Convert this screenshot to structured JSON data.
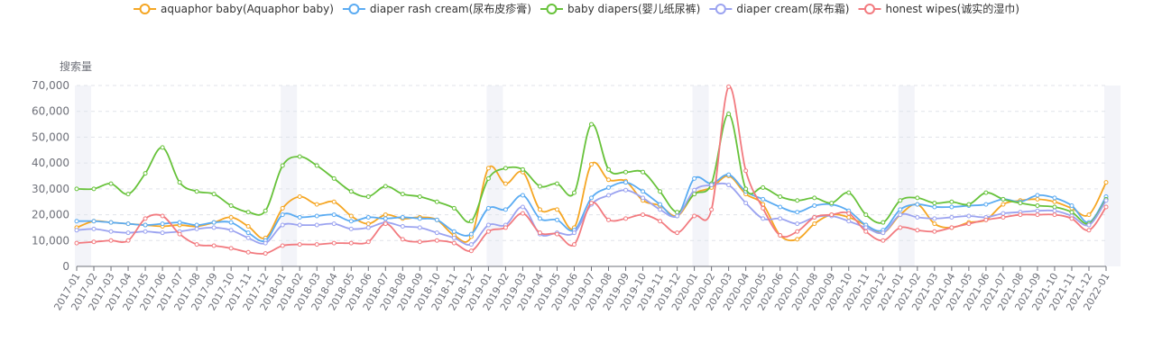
{
  "chart_data": {
    "type": "line",
    "ylabel": "搜索量",
    "ylim": [
      0,
      70000
    ],
    "yticks": [
      0,
      10000,
      20000,
      30000,
      40000,
      50000,
      60000,
      70000
    ],
    "ytick_labels": [
      "0",
      "10,000",
      "20,000",
      "30,000",
      "40,000",
      "50,000",
      "60,000",
      "70,000"
    ],
    "legend_position": "top-center",
    "grid": "horizontal-dashed",
    "categories": [
      "2017-01",
      "2017-02",
      "2017-03",
      "2017-04",
      "2017-05",
      "2017-06",
      "2017-07",
      "2017-08",
      "2017-09",
      "2017-10",
      "2017-11",
      "2017-12",
      "2018-01",
      "2018-02",
      "2018-03",
      "2018-04",
      "2018-05",
      "2018-06",
      "2018-07",
      "2018-08",
      "2018-09",
      "2018-10",
      "2018-11",
      "2018-12",
      "2019-01",
      "2019-02",
      "2019-03",
      "2019-04",
      "2019-05",
      "2019-06",
      "2019-07",
      "2019-08",
      "2019-09",
      "2019-10",
      "2019-11",
      "2019-12",
      "2020-01",
      "2020-02",
      "2020-03",
      "2020-04",
      "2020-05",
      "2020-06",
      "2020-07",
      "2020-08",
      "2020-09",
      "2020-10",
      "2020-11",
      "2020-12",
      "2021-01",
      "2021-02",
      "2021-03",
      "2021-04",
      "2021-05",
      "2021-06",
      "2021-07",
      "2021-08",
      "2021-09",
      "2021-10",
      "2021-11",
      "2021-12",
      "2022-01"
    ],
    "series": [
      {
        "name": "aquaphor baby(Aquaphor baby)",
        "color": "#f5a623",
        "values": [
          15000,
          17500,
          17000,
          16500,
          16000,
          15500,
          16000,
          15500,
          17000,
          19000,
          15500,
          11000,
          22500,
          27000,
          24000,
          25000,
          19500,
          16500,
          20000,
          18500,
          19000,
          18000,
          12000,
          11500,
          38000,
          32000,
          36500,
          22000,
          22000,
          15000,
          39500,
          33500,
          33000,
          25500,
          23500,
          19500,
          28000,
          30500,
          35000,
          28000,
          24000,
          12000,
          10500,
          16500,
          20000,
          19000,
          16000,
          13000,
          20000,
          24000,
          16500,
          15000,
          17000,
          18000,
          24000,
          25500,
          26000,
          25000,
          22500,
          20000,
          32500
        ]
      },
      {
        "name": "diaper rash cream(尿布皮疹膏)",
        "color": "#5aabf2",
        "values": [
          17500,
          17500,
          17000,
          16500,
          16000,
          16500,
          17000,
          16000,
          17000,
          17000,
          13000,
          10000,
          20000,
          19000,
          19500,
          20000,
          17500,
          19000,
          18500,
          19000,
          18500,
          18000,
          13500,
          12500,
          22500,
          22000,
          27500,
          18500,
          18000,
          14000,
          26500,
          30500,
          32500,
          29000,
          24000,
          19500,
          34000,
          32000,
          35500,
          29000,
          26000,
          23000,
          21000,
          23500,
          24000,
          21500,
          16000,
          14000,
          22000,
          24000,
          23000,
          23000,
          23500,
          24000,
          26000,
          25000,
          27500,
          26500,
          23500,
          17000,
          27000
        ]
      },
      {
        "name": "baby diapers(婴儿纸尿裤)",
        "color": "#67c23a",
        "values": [
          30000,
          30000,
          32000,
          28000,
          36000,
          46000,
          32500,
          29000,
          28000,
          23500,
          21000,
          21500,
          39000,
          42500,
          39000,
          34000,
          29000,
          27000,
          31000,
          28000,
          27000,
          25000,
          22500,
          17500,
          34000,
          38000,
          37500,
          31000,
          32000,
          28500,
          55000,
          37500,
          36500,
          36500,
          29000,
          21000,
          28000,
          32000,
          59000,
          30000,
          30500,
          27000,
          25500,
          26500,
          24500,
          28500,
          20000,
          17000,
          25500,
          26500,
          24500,
          25000,
          24000,
          28500,
          26000,
          24500,
          23500,
          23000,
          21000,
          16500,
          26000
        ]
      },
      {
        "name": "diaper cream(尿布霜)",
        "color": "#9ba3f0",
        "values": [
          14000,
          14500,
          13500,
          13000,
          13500,
          13000,
          13500,
          14500,
          15000,
          14000,
          11000,
          9000,
          16000,
          16000,
          16000,
          16500,
          14500,
          15000,
          17000,
          15500,
          15000,
          13000,
          11000,
          8500,
          16000,
          16000,
          23000,
          12500,
          13000,
          13000,
          24000,
          27500,
          29500,
          26500,
          22000,
          19500,
          29500,
          31500,
          31500,
          24500,
          18500,
          18500,
          16500,
          19000,
          19500,
          17500,
          15000,
          13000,
          20000,
          19000,
          18500,
          19000,
          19500,
          19000,
          20500,
          21000,
          21500,
          21500,
          19500,
          16000,
          25500
        ]
      },
      {
        "name": "honest wipes(诚实的湿巾)",
        "color": "#f27a7f",
        "values": [
          9000,
          9500,
          10000,
          10000,
          18500,
          19500,
          12500,
          8500,
          8000,
          7000,
          5500,
          5000,
          8000,
          8500,
          8500,
          9000,
          9000,
          9500,
          16500,
          10500,
          9500,
          10000,
          9000,
          6000,
          13500,
          15000,
          20500,
          13000,
          12500,
          8500,
          24500,
          18000,
          18500,
          20000,
          17500,
          13000,
          19500,
          22000,
          69500,
          37000,
          22500,
          12000,
          13500,
          19000,
          20000,
          20500,
          13500,
          10000,
          15000,
          14000,
          13500,
          15000,
          16500,
          18000,
          19000,
          20000,
          20000,
          20000,
          18500,
          14000,
          23000
        ]
      }
    ]
  }
}
